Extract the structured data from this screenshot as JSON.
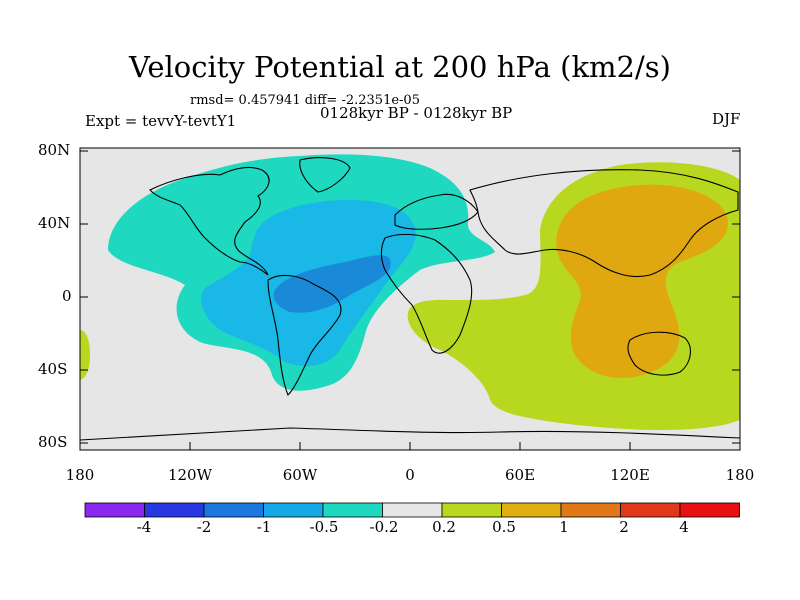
{
  "header": {
    "title": "Velocity Potential at 200 hPa (km2/s)",
    "stats": "rmsd= 0.457941 diff= -2.2351e-05",
    "experiment": "Expt = tevvY-tevtY1",
    "period": "0128kyr BP - 0128kyr BP",
    "season": "DJF"
  },
  "map": {
    "y_ticks": [
      "80N",
      "40N",
      "0",
      "40S",
      "80S"
    ],
    "x_ticks": [
      "180",
      "120W",
      "60W",
      "0",
      "60E",
      "120E",
      "180"
    ],
    "colors": {
      "neutral": "#e6e6e6",
      "neg_02_05": "#1fd8c0",
      "neg_05_1": "#19b8e6",
      "neg_1_2": "#1a8ad8",
      "pos_02_05": "#b8d820",
      "pos_05_1": "#e0a810",
      "coast": "#000000"
    }
  },
  "colorbar": {
    "labels": [
      "-4",
      "-2",
      "-1",
      "-0.5",
      "-0.2",
      "0.2",
      "0.5",
      "1",
      "2",
      "4"
    ],
    "colors": [
      "#8a28f0",
      "#2838e0",
      "#1a78e0",
      "#14a8e6",
      "#1fd8c0",
      "#e6e6e6",
      "#b8d820",
      "#e0b010",
      "#e07818",
      "#e03818",
      "#e81010"
    ]
  }
}
